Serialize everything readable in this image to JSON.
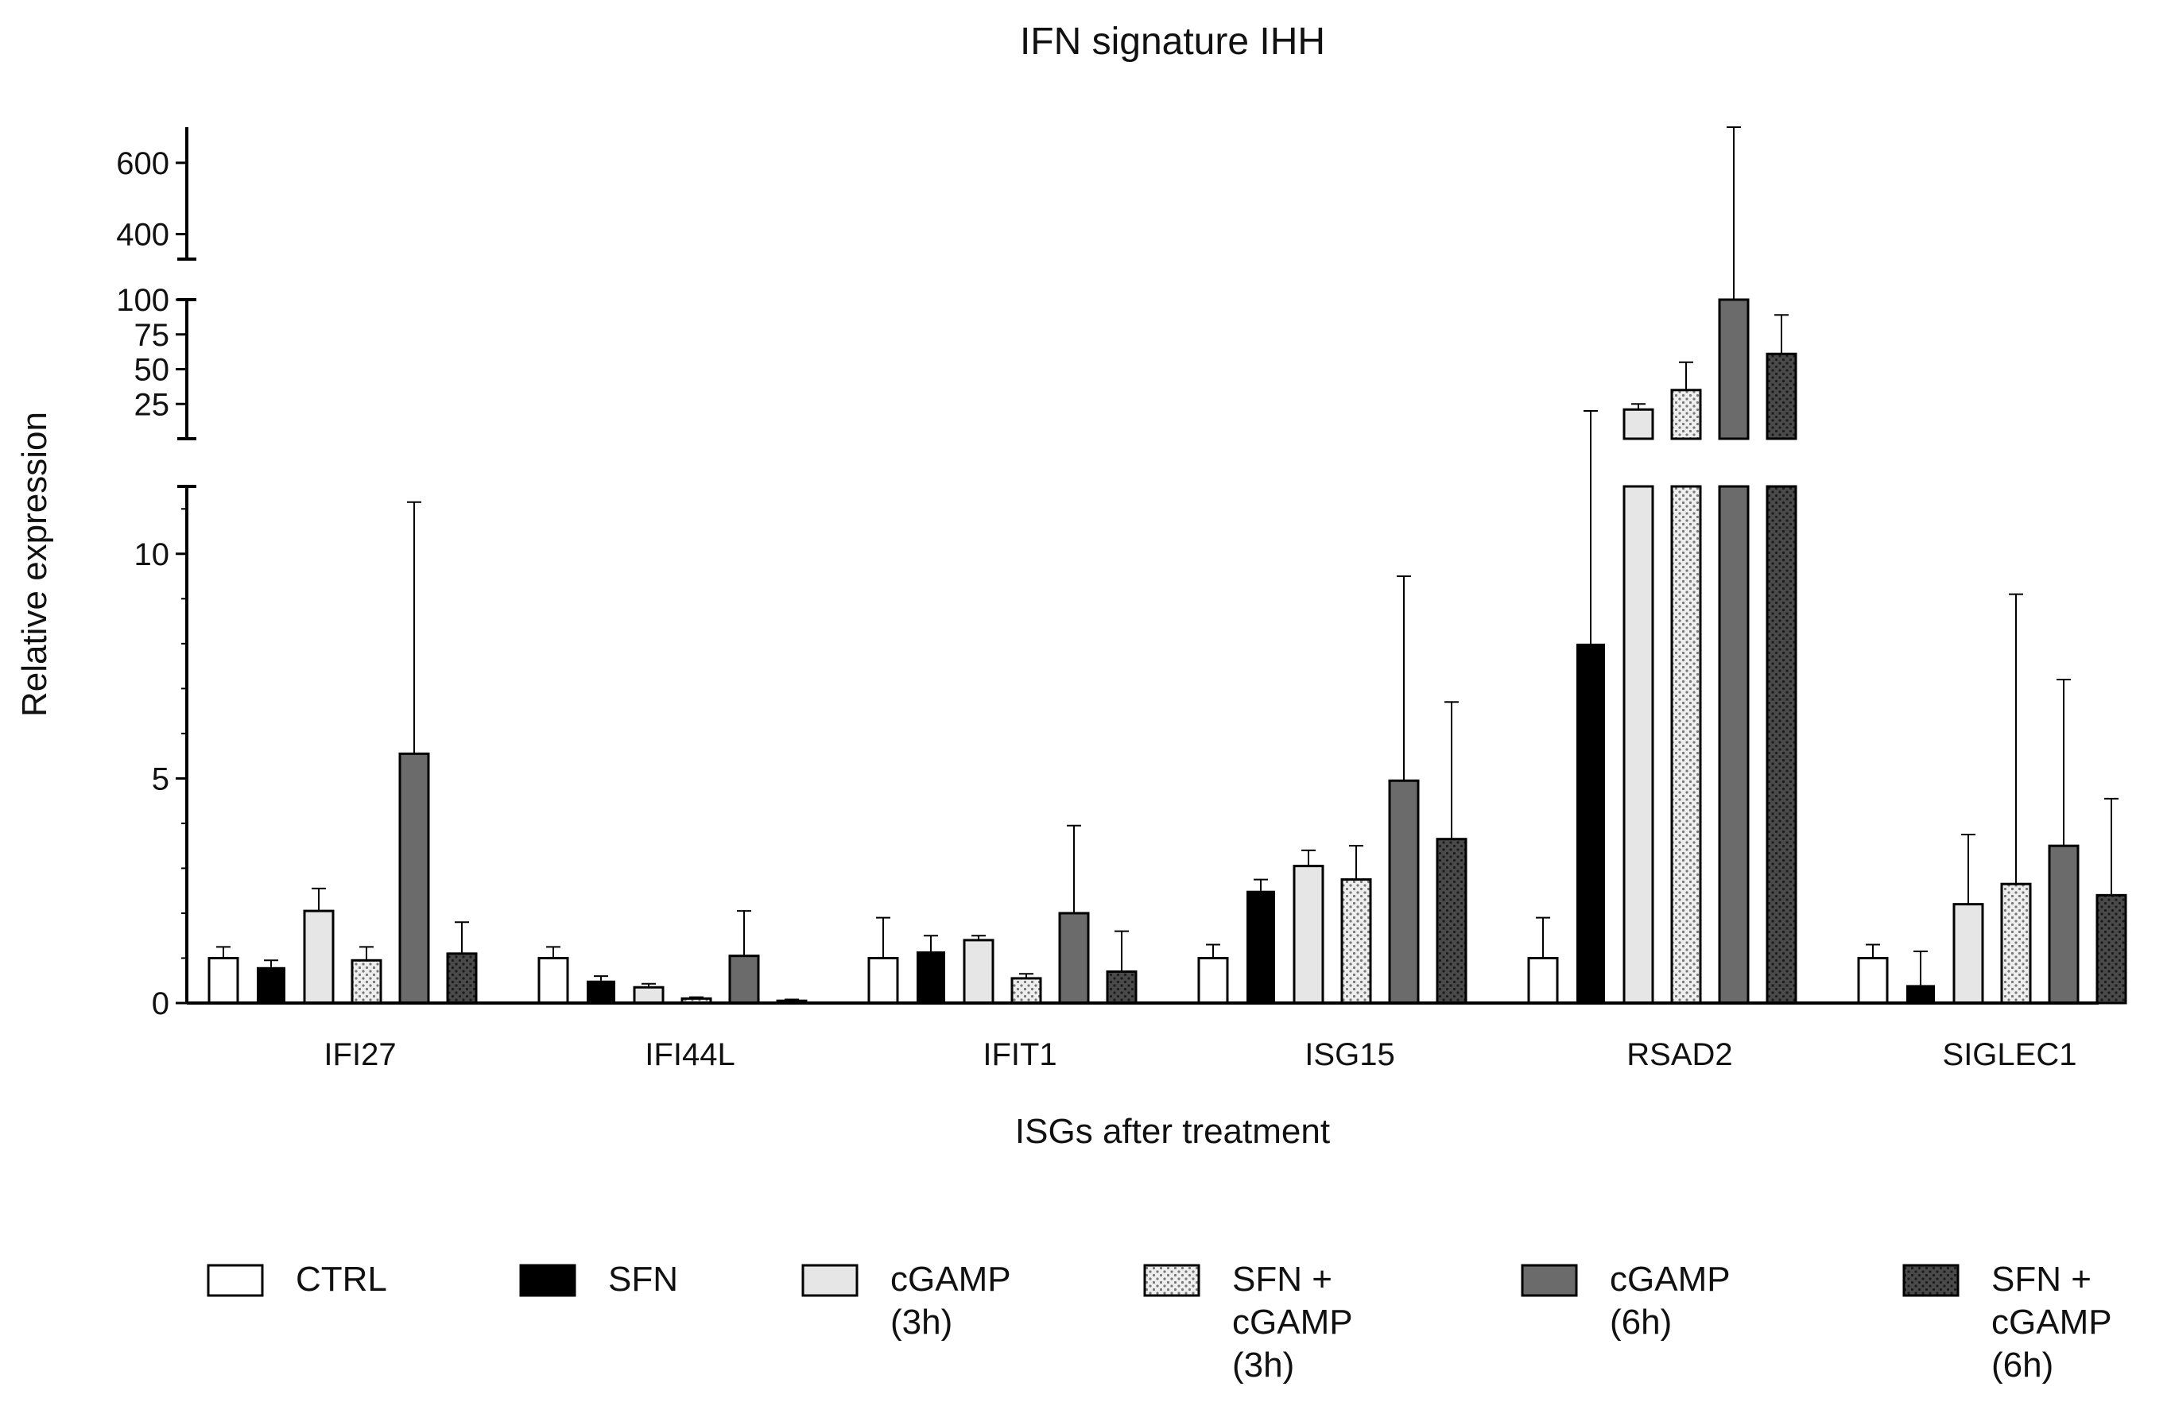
{
  "chart_data": {
    "type": "bar",
    "title": "IFN signature IHH",
    "xlabel": "ISGs after treatment",
    "ylabel": "Relative expression",
    "categories": [
      "IFI27",
      "IFI44L",
      "IFIT1",
      "ISG15",
      "RSAD2",
      "SIGLEC1"
    ],
    "y_axis_segments": [
      {
        "range": [
          0,
          11.5
        ],
        "ticks": [
          0,
          5,
          10
        ],
        "tick_labels": [
          "0",
          "5",
          "10"
        ]
      },
      {
        "range": [
          0,
          100
        ],
        "ticks": [
          25,
          50,
          75,
          100
        ],
        "tick_labels": [
          "25",
          "50",
          "75",
          "100"
        ]
      },
      {
        "range": [
          330,
          700
        ],
        "ticks": [
          400,
          600
        ],
        "tick_labels": [
          "400",
          "600"
        ]
      }
    ],
    "series": [
      {
        "name": "CTRL",
        "legend_lines": [
          "CTRL"
        ],
        "fill": "#ffffff",
        "pattern": "none",
        "values": [
          1.0,
          1.0,
          1.0,
          1.0,
          1.0,
          1.0
        ],
        "errors": [
          0.25,
          0.25,
          0.9,
          0.3,
          0.9,
          0.3
        ]
      },
      {
        "name": "SFN",
        "legend_lines": [
          "SFN"
        ],
        "fill": "#000000",
        "pattern": "none",
        "values": [
          0.8,
          0.5,
          1.15,
          2.5,
          8.0,
          0.4
        ],
        "errors": [
          0.15,
          0.1,
          0.35,
          0.25,
          12.0,
          0.75
        ]
      },
      {
        "name": "cGAMP (3h)",
        "legend_lines": [
          "cGAMP",
          "(3h)"
        ],
        "fill": "#e6e6e6",
        "pattern": "none",
        "values": [
          2.05,
          0.35,
          1.4,
          3.05,
          21.0,
          2.2
        ],
        "errors": [
          0.5,
          0.08,
          0.1,
          0.35,
          4.0,
          1.55
        ]
      },
      {
        "name": "SFN + cGAMP (3h)",
        "legend_lines": [
          "SFN +",
          "cGAMP",
          "(3h)"
        ],
        "fill": "#eeeeee",
        "pattern": "dots-light",
        "values": [
          0.95,
          0.1,
          0.55,
          2.75,
          35.0,
          2.65
        ],
        "errors": [
          0.3,
          0.03,
          0.1,
          0.75,
          20.0,
          6.45
        ]
      },
      {
        "name": "cGAMP (6h)",
        "legend_lines": [
          "cGAMP",
          "(6h)"
        ],
        "fill": "#6b6b6b",
        "pattern": "none",
        "values": [
          5.55,
          1.05,
          2.0,
          4.95,
          330,
          3.5
        ],
        "errors": [
          5.6,
          1.0,
          1.95,
          4.55,
          370,
          3.7
        ]
      },
      {
        "name": "SFN + cGAMP (6h)",
        "legend_lines": [
          "SFN +",
          "cGAMP",
          "(6h)"
        ],
        "fill": "#4a4a4a",
        "pattern": "dots-dark",
        "values": [
          1.1,
          0.05,
          0.7,
          3.65,
          61.0,
          2.4
        ],
        "errors": [
          0.7,
          0.03,
          0.9,
          3.05,
          28.0,
          2.15
        ]
      }
    ]
  }
}
